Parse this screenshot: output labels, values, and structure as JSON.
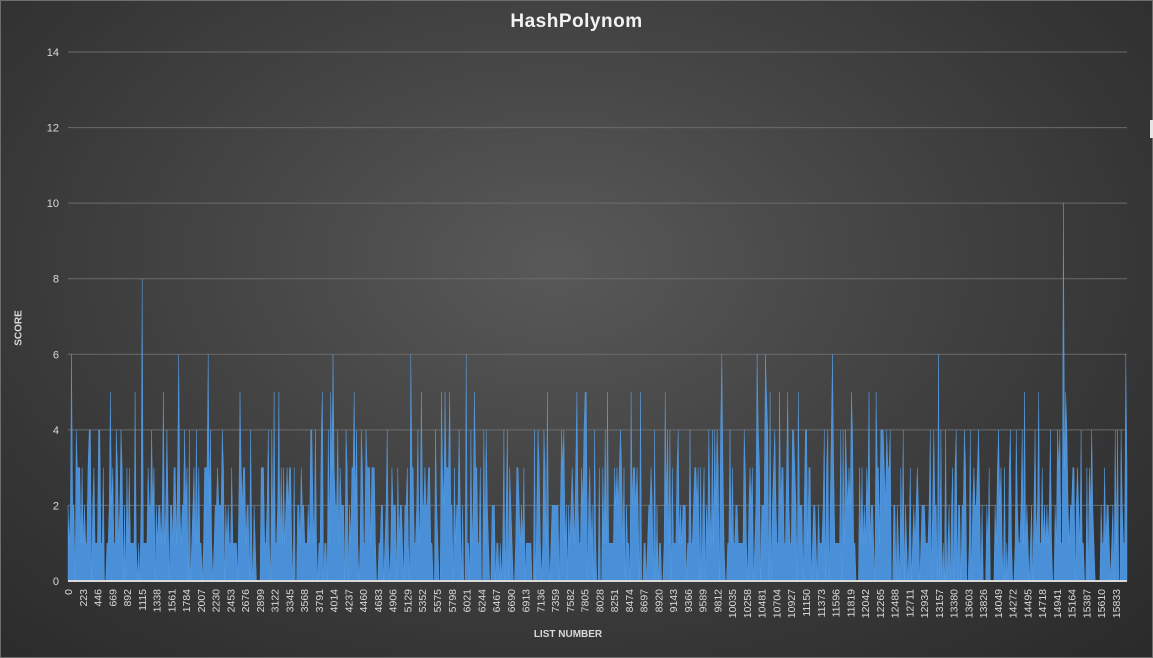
{
  "chart_data": {
    "type": "area",
    "title": "HashPolynom",
    "xlabel": "LIST NUMBER",
    "ylabel": "SCORE",
    "ylim": [
      0,
      14
    ],
    "yticks": [
      0,
      2,
      4,
      6,
      8,
      10,
      12,
      14
    ],
    "xlim": [
      0,
      16000
    ],
    "xticks": [
      0,
      223,
      446,
      669,
      892,
      1115,
      1338,
      1561,
      1784,
      2007,
      2230,
      2453,
      2676,
      2899,
      3122,
      3345,
      3568,
      3791,
      4014,
      4237,
      4460,
      4683,
      4906,
      5129,
      5352,
      5575,
      5798,
      6021,
      6244,
      6467,
      6690,
      6913,
      7136,
      7359,
      7582,
      7805,
      8028,
      8251,
      8474,
      8697,
      8920,
      9143,
      9366,
      9589,
      9812,
      10035,
      10258,
      10481,
      10704,
      10927,
      11150,
      11373,
      11596,
      11819,
      12042,
      12265,
      12488,
      12711,
      12934,
      13157,
      13380,
      13603,
      13826,
      14049,
      14272,
      14495,
      14718,
      14941,
      15164,
      15387,
      15610,
      15833
    ],
    "grid": true,
    "colors": {
      "fill": "#4a90d9",
      "grid": "#6b6b6b",
      "text": "#d9d9d9"
    },
    "notable_peaks": [
      {
        "x": 1115,
        "y": 8
      },
      {
        "x": 11550,
        "y": 6
      },
      {
        "x": 13160,
        "y": 6
      },
      {
        "x": 15040,
        "y": 10
      }
    ],
    "typical_range": [
      0,
      5
    ]
  }
}
